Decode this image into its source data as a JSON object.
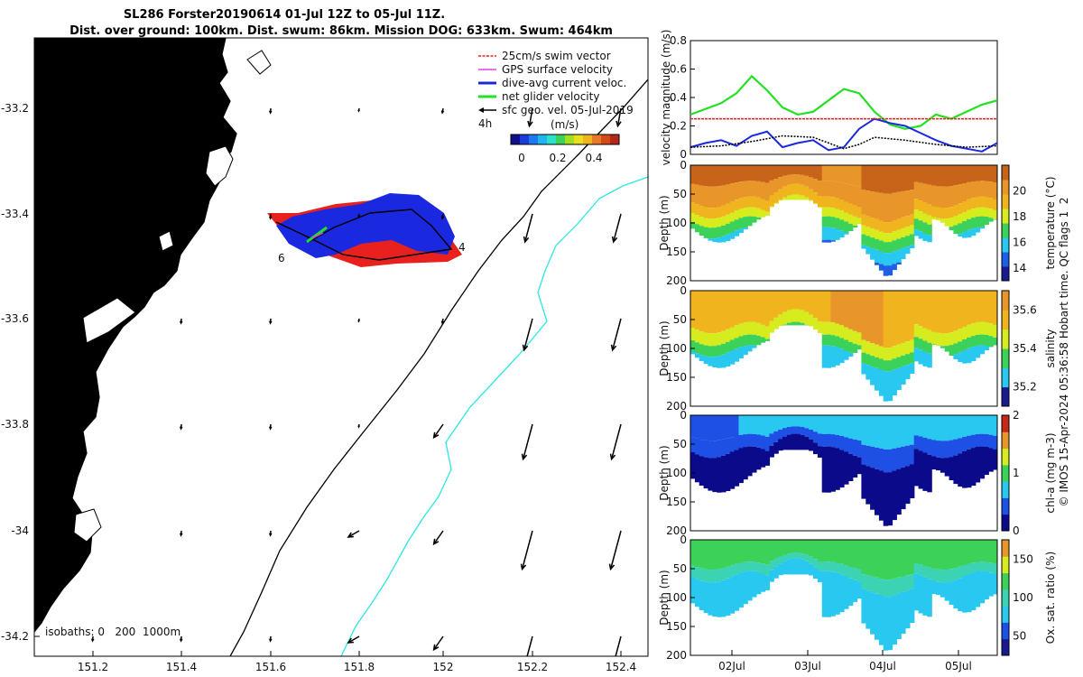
{
  "title": {
    "line1": "SL286 Forster20190614 01-Jul 12Z to 05-Jul 11Z.",
    "line2": "Dist. over ground: 100km. Dist. swum: 86km. Mission DOG: 633km. Swum: 464km"
  },
  "map": {
    "legend": [
      {
        "label": "25cm/s swim vector",
        "color": "#e8201e"
      },
      {
        "label": "GPS surface velocity",
        "color": "#e040e0"
      },
      {
        "label": "dive-avg current veloc.",
        "color": "#1a28e0"
      },
      {
        "label": "net glider velocity",
        "color": "#22e022"
      },
      {
        "label": "sfc geo. vel. 05-Jul-2019",
        "color": "#000000"
      }
    ],
    "time_step": "4h",
    "colorbar_unit": "(m/s)",
    "colorbar_ticks": [
      "0",
      "0.2",
      "0.4"
    ],
    "lon_ticks": [
      "151.2",
      "151.4",
      "151.6",
      "151.8",
      "152",
      "152.2",
      "152.4"
    ],
    "lat_ticks": [
      "-33.2",
      "-33.4",
      "-33.6",
      "-33.8",
      "-34",
      "-34.2"
    ],
    "isobaths_label": "isobaths: 0   200  1000m",
    "track_labels": [
      "6",
      "4"
    ],
    "colors": {
      "land": "#f9c998",
      "isobath_200": "#000000",
      "isobath_1000": "#2ee6e6"
    }
  },
  "chart_data": [
    {
      "type": "line",
      "name": "velocity magnitude",
      "ylabel": "velocity magnitude (m/s)",
      "ylim": [
        0,
        0.8
      ],
      "yticks": [
        "0",
        "0.2",
        "0.4",
        "0.6",
        "0.8"
      ],
      "series": [
        {
          "name": "net glider velocity",
          "color": "#22e022",
          "x": [
            0,
            0.05,
            0.1,
            0.15,
            0.2,
            0.25,
            0.3,
            0.35,
            0.4,
            0.45,
            0.5,
            0.55,
            0.6,
            0.65,
            0.7,
            0.75,
            0.8,
            0.85,
            0.9,
            0.95,
            1
          ],
          "values": [
            0.28,
            0.32,
            0.36,
            0.43,
            0.55,
            0.45,
            0.33,
            0.28,
            0.3,
            0.38,
            0.46,
            0.43,
            0.3,
            0.21,
            0.18,
            0.2,
            0.28,
            0.25,
            0.3,
            0.35,
            0.38
          ]
        },
        {
          "name": "dive-avg current veloc.",
          "color": "#1a28e0",
          "x": [
            0,
            0.05,
            0.1,
            0.15,
            0.2,
            0.25,
            0.3,
            0.35,
            0.4,
            0.45,
            0.5,
            0.55,
            0.6,
            0.65,
            0.7,
            0.75,
            0.8,
            0.85,
            0.9,
            0.95,
            1
          ],
          "values": [
            0.05,
            0.08,
            0.1,
            0.06,
            0.13,
            0.16,
            0.05,
            0.08,
            0.1,
            0.03,
            0.05,
            0.18,
            0.25,
            0.22,
            0.2,
            0.15,
            0.1,
            0.06,
            0.04,
            0.02,
            0.08
          ]
        },
        {
          "name": "sfc geo. vel.",
          "color": "#000000",
          "x": [
            0,
            0.1,
            0.2,
            0.3,
            0.4,
            0.5,
            0.55,
            0.6,
            0.7,
            0.8,
            0.9,
            1
          ],
          "values": [
            0.05,
            0.06,
            0.09,
            0.13,
            0.12,
            0.04,
            0.07,
            0.12,
            0.1,
            0.07,
            0.05,
            0.06
          ]
        },
        {
          "name": "25cm/s swim vector",
          "color": "#e8201e",
          "x": [
            0,
            1
          ],
          "values": [
            0.25,
            0.25
          ]
        }
      ]
    },
    {
      "type": "heatmap",
      "name": "temperature",
      "ylabel": "Depth (m)",
      "cbar_label": "temperature (°C)",
      "cbar_ticks": [
        "14",
        "16",
        "18",
        "20"
      ],
      "crange": [
        13,
        22
      ],
      "yticks": [
        "0",
        "50",
        "100",
        "150",
        "200"
      ],
      "colors": [
        "#1a1a8f",
        "#1e5fe6",
        "#28c8f0",
        "#3cd25a",
        "#d6ec1e",
        "#f0b41e",
        "#e8962a",
        "#c8641a"
      ]
    },
    {
      "type": "heatmap",
      "name": "salinity",
      "ylabel": "Depth (m)",
      "cbar_label": "salinity",
      "cbar_ticks": [
        "35.2",
        "35.4",
        "35.6"
      ],
      "crange": [
        35.1,
        35.7
      ],
      "yticks": [
        "0",
        "50",
        "100",
        "150",
        "200"
      ],
      "colors": [
        "#1a1a8f",
        "#28c8f0",
        "#3cd25a",
        "#d6ec1e",
        "#f0b41e",
        "#e8962a"
      ]
    },
    {
      "type": "heatmap",
      "name": "chl-a",
      "ylabel": "Depth (m)",
      "cbar_label": "chl-a (mg m-3)",
      "cbar_ticks": [
        "0",
        "1",
        "2"
      ],
      "crange": [
        0,
        2
      ],
      "yticks": [
        "0",
        "50",
        "100",
        "150",
        "200"
      ],
      "colors": [
        "#0a0a8a",
        "#1e50e6",
        "#28c8f0",
        "#3cd25a",
        "#d6ec1e",
        "#e8962a",
        "#c8281a"
      ]
    },
    {
      "type": "heatmap",
      "name": "oxygen",
      "ylabel": "Depth (m)",
      "cbar_label": "Ox. sat. ratio (%)",
      "cbar_ticks": [
        "50",
        "100",
        "150"
      ],
      "crange": [
        25,
        175
      ],
      "yticks": [
        "0",
        "50",
        "100",
        "150",
        "200"
      ],
      "colors": [
        "#1a1a8f",
        "#1e50e6",
        "#28c8f0",
        "#3cd2b4",
        "#3cd25a",
        "#d6ec1e",
        "#e8962a"
      ]
    }
  ],
  "time_axis": {
    "ticks": [
      "02Jul",
      "03Jul",
      "04Jul",
      "05Jul"
    ]
  },
  "footer": {
    "credit": "© IMOS 15-Apr-2024 05:36:58 Hobart time. QC flags 1  2"
  }
}
